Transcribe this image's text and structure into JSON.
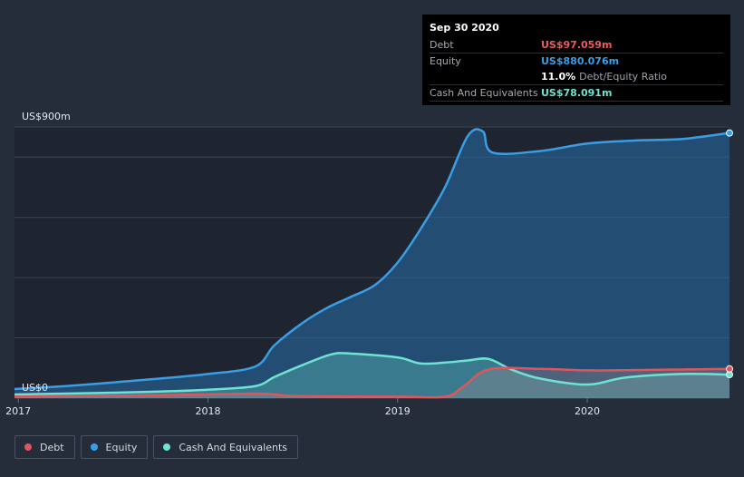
{
  "tooltip": {
    "date": "Sep 30 2020",
    "rows": [
      {
        "label": "Debt",
        "value": "US$97.059m",
        "color": "#ee5a5f"
      },
      {
        "label": "Equity",
        "value": "US$880.076m",
        "color": "#3a9ee6"
      },
      {
        "label": "",
        "value": "11.0%",
        "sub": "Debt/Equity Ratio",
        "color": "#ffffff"
      },
      {
        "label": "Cash And Equivalents",
        "value": "US$78.091m",
        "color": "#6ee3d4"
      }
    ]
  },
  "legend": [
    {
      "label": "Debt",
      "color": "#e0555c"
    },
    {
      "label": "Equity",
      "color": "#3a9ee6"
    },
    {
      "label": "Cash And Equivalents",
      "color": "#6ee3d4"
    }
  ],
  "chart_data": {
    "type": "area",
    "title": "",
    "xlabel": "",
    "ylabel": "",
    "y_top_label": "US$900m",
    "y_bottom_label": "US$0",
    "ylim": [
      0,
      900
    ],
    "xlim": [
      2016.98,
      2020.75
    ],
    "x_ticks": [
      {
        "value": 2017,
        "label": "2017"
      },
      {
        "value": 2018,
        "label": "2018"
      },
      {
        "value": 2019,
        "label": "2019"
      },
      {
        "value": 2020,
        "label": "2020"
      }
    ],
    "gridlines": [
      200,
      400,
      600,
      800,
      900
    ],
    "series": [
      {
        "name": "Equity",
        "color": "#3a9ee6",
        "x": [
          2016.98,
          2017.25,
          2017.5,
          2017.75,
          2018.0,
          2018.25,
          2018.35,
          2018.5,
          2018.63,
          2018.75,
          2018.88,
          2019.0,
          2019.12,
          2019.25,
          2019.37,
          2019.45,
          2019.5,
          2019.75,
          2020.0,
          2020.25,
          2020.5,
          2020.75
        ],
        "y": [
          30,
          40,
          52,
          65,
          80,
          105,
          175,
          250,
          300,
          335,
          375,
          450,
          560,
          700,
          870,
          885,
          815,
          820,
          845,
          855,
          860,
          880
        ]
      },
      {
        "name": "Cash And Equivalents",
        "color": "#6ee3d4",
        "x": [
          2016.98,
          2017.25,
          2017.5,
          2017.75,
          2018.0,
          2018.25,
          2018.35,
          2018.5,
          2018.65,
          2018.75,
          2019.0,
          2019.12,
          2019.25,
          2019.37,
          2019.48,
          2019.6,
          2019.75,
          2020.0,
          2020.2,
          2020.5,
          2020.75
        ],
        "y": [
          12,
          15,
          18,
          22,
          28,
          40,
          70,
          110,
          145,
          148,
          135,
          115,
          118,
          125,
          130,
          95,
          65,
          45,
          68,
          80,
          78
        ]
      },
      {
        "name": "Debt",
        "color": "#e0555c",
        "x": [
          2016.98,
          2017.5,
          2018.0,
          2018.25,
          2018.35,
          2018.5,
          2019.0,
          2019.25,
          2019.35,
          2019.48,
          2019.75,
          2020.0,
          2020.25,
          2020.5,
          2020.75
        ],
        "y": [
          5,
          8,
          12,
          15,
          12,
          6,
          5,
          5,
          40,
          95,
          97,
          92,
          93,
          95,
          97
        ]
      }
    ]
  }
}
